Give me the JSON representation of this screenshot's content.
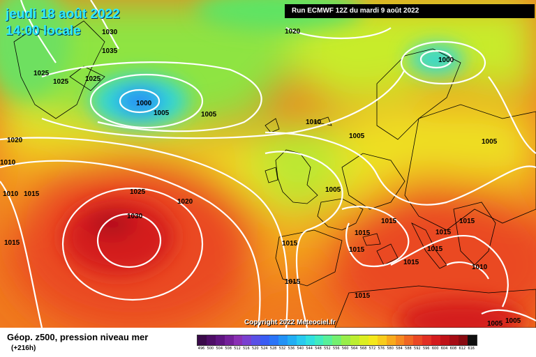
{
  "header": {
    "date": "jeudi 18 août 2022",
    "time": "14:00 locale",
    "run": "Run ECMWF 12Z du mardi 9 août 2022"
  },
  "copyright": "Copyright 2022 Meteociel.fr",
  "footer": {
    "title": "Géop. z500, pression niveau mer",
    "forecast_hour": "(+216h)"
  },
  "legend": {
    "labels": [
      "496",
      "500",
      "504",
      "508",
      "512",
      "516",
      "520",
      "524",
      "528",
      "532",
      "536",
      "540",
      "544",
      "548",
      "552",
      "556",
      "560",
      "564",
      "568",
      "572",
      "576",
      "580",
      "584",
      "588",
      "592",
      "596",
      "600",
      "604",
      "608",
      "612",
      "616"
    ],
    "colors": [
      "#3a0a4a",
      "#4d0d66",
      "#5e1480",
      "#74209a",
      "#8a30b4",
      "#7a40d0",
      "#5a50e6",
      "#3a5cf4",
      "#2a74f8",
      "#2292f6",
      "#22aef4",
      "#28caf0",
      "#30e0e0",
      "#40ecc0",
      "#58f09a",
      "#74f070",
      "#98ee4a",
      "#bcee30",
      "#dcee22",
      "#f4e81c",
      "#f8cc1c",
      "#f8aa1c",
      "#f68820",
      "#f06622",
      "#ea4824",
      "#e23024",
      "#d41c1e",
      "#c01218",
      "#a60c14",
      "#880a10",
      "#101010"
    ]
  },
  "isobars": [
    {
      "value": "1030"
    },
    {
      "value": "1035"
    },
    {
      "value": "1025"
    },
    {
      "value": "1025"
    },
    {
      "value": "1025"
    },
    {
      "value": "1000"
    },
    {
      "value": "1005"
    },
    {
      "value": "1005"
    },
    {
      "value": "1020"
    },
    {
      "value": "1000"
    },
    {
      "value": "1010"
    },
    {
      "value": "1005"
    },
    {
      "value": "1005"
    },
    {
      "value": "1020"
    },
    {
      "value": "1010"
    },
    {
      "value": "1010"
    },
    {
      "value": "1015"
    },
    {
      "value": "1025"
    },
    {
      "value": "1020"
    },
    {
      "value": "1030"
    },
    {
      "value": "1005"
    },
    {
      "value": "1015"
    },
    {
      "value": "1015"
    },
    {
      "value": "1015"
    },
    {
      "value": "1015"
    },
    {
      "value": "1015"
    },
    {
      "value": "1015"
    },
    {
      "value": "1015"
    },
    {
      "value": "1015"
    },
    {
      "value": "1015"
    },
    {
      "value": "1010"
    },
    {
      "value": "1015"
    },
    {
      "value": "1015"
    },
    {
      "value": "1005"
    },
    {
      "value": "1005"
    }
  ]
}
